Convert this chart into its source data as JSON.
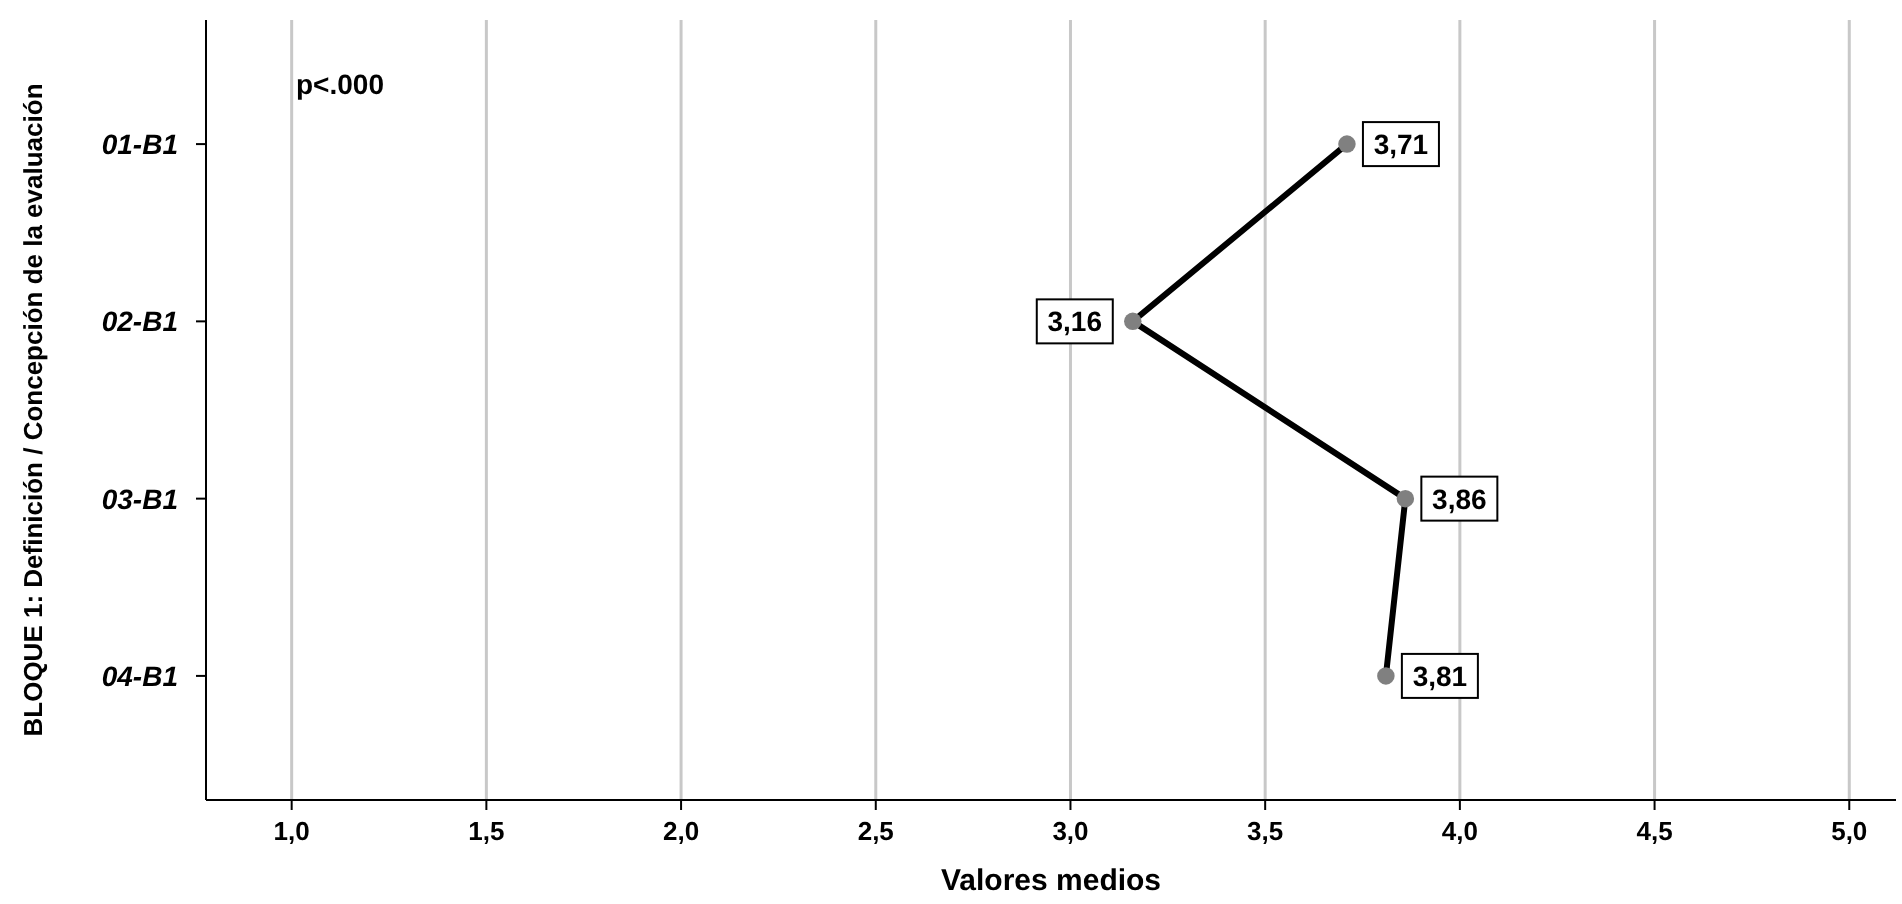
{
  "chart_data": {
    "type": "line",
    "orientation": "horizontal",
    "ylabel": "BLOQUE 1: Definición / Concepción de la evaluación",
    "xlabel": "Valores medios",
    "categories": [
      "01-B1",
      "02-B1",
      "03-B1",
      "04-B1"
    ],
    "series": [
      {
        "color": "#000000",
        "values": [
          3.71,
          3.16,
          3.86,
          3.81
        ],
        "value_labels": [
          "3,71",
          "3,16",
          "3,86",
          "3,81"
        ]
      }
    ],
    "xlim": [
      0.78,
      5.12
    ],
    "xticks": [
      {
        "value": 1,
        "label": "1,0"
      },
      {
        "value": 1.5,
        "label": "1,5"
      },
      {
        "value": 2,
        "label": "2,0"
      },
      {
        "value": 2.5,
        "label": "2,5"
      },
      {
        "value": 3,
        "label": "3,0"
      },
      {
        "value": 3.5,
        "label": "3,5"
      },
      {
        "value": 4,
        "label": "4,0"
      },
      {
        "value": 4.5,
        "label": "4,5"
      },
      {
        "value": 5,
        "label": "5,0"
      }
    ],
    "grid": "x",
    "marker": "circle",
    "line_style": "solid",
    "annotations": [
      "p<.000"
    ]
  }
}
